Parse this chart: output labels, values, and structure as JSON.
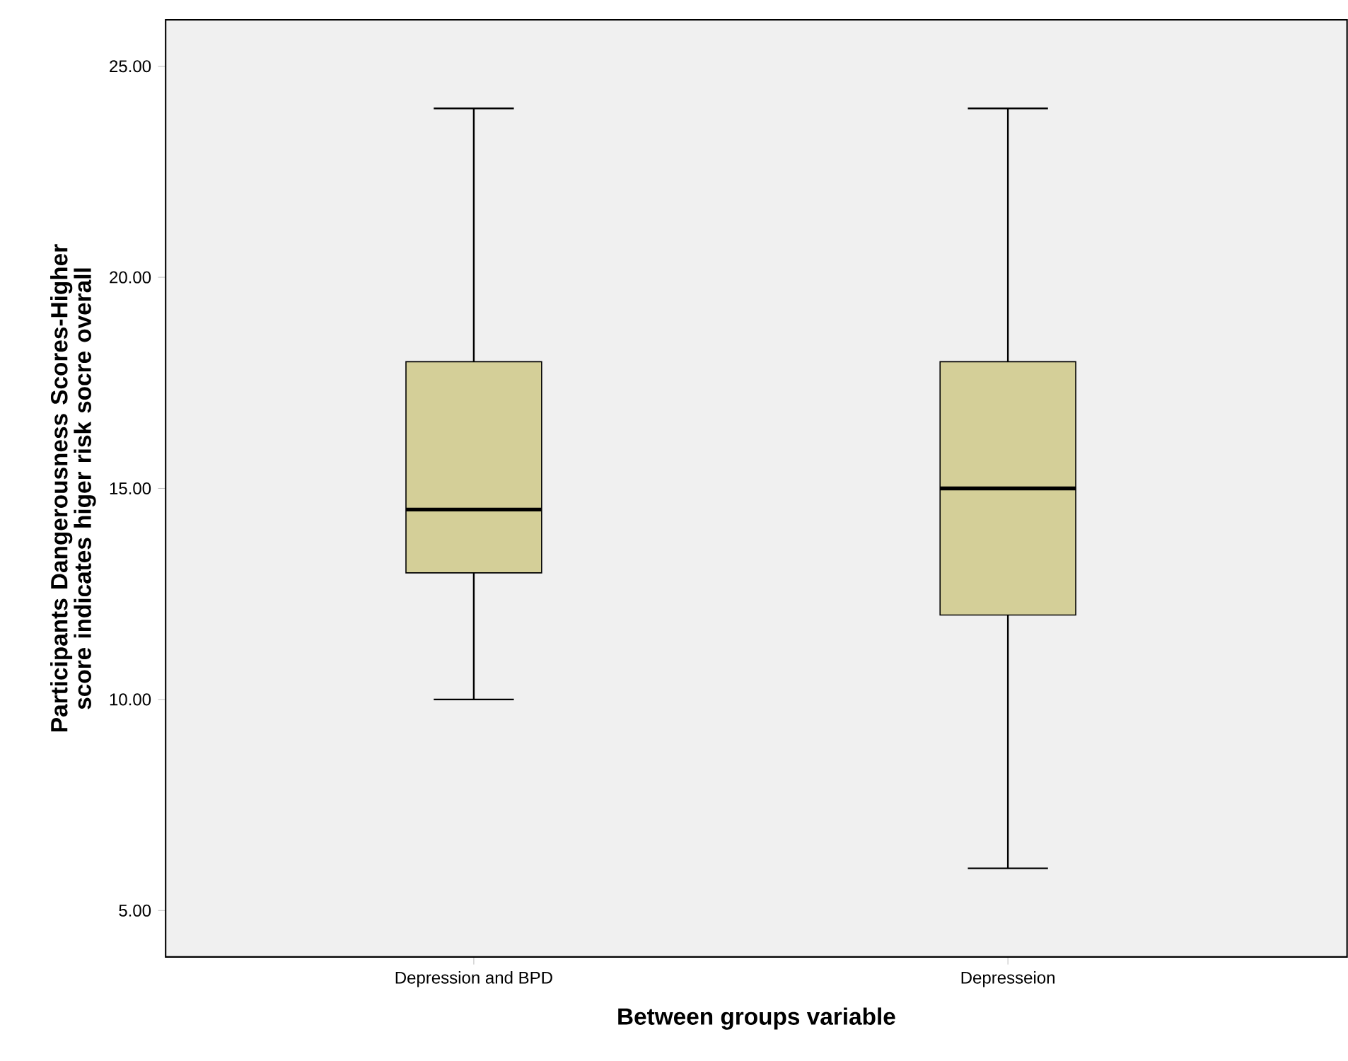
{
  "chart_data": {
    "type": "box",
    "xlabel": "Between groups variable",
    "ylabel": "Participants Dangerousness Scores-Higher score indicates higer risk socre overall",
    "categories": [
      "Depression and BPD",
      "Depresseion"
    ],
    "series": [
      {
        "color": "#d4cf98",
        "boxes": [
          {
            "low": 10,
            "q1": 13,
            "median": 14.5,
            "q3": 18,
            "high": 24
          },
          {
            "low": 6,
            "q1": 12,
            "median": 15,
            "q3": 18,
            "high": 24
          }
        ]
      }
    ],
    "ylim": [
      3.9,
      26.1
    ],
    "yticks": [
      {
        "value": 5,
        "label": "5.00"
      },
      {
        "value": 10,
        "label": "10.00"
      },
      {
        "value": 15,
        "label": "15.00"
      },
      {
        "value": 20,
        "label": "20.00"
      },
      {
        "value": 25,
        "label": "25.00"
      }
    ],
    "grid": false
  }
}
